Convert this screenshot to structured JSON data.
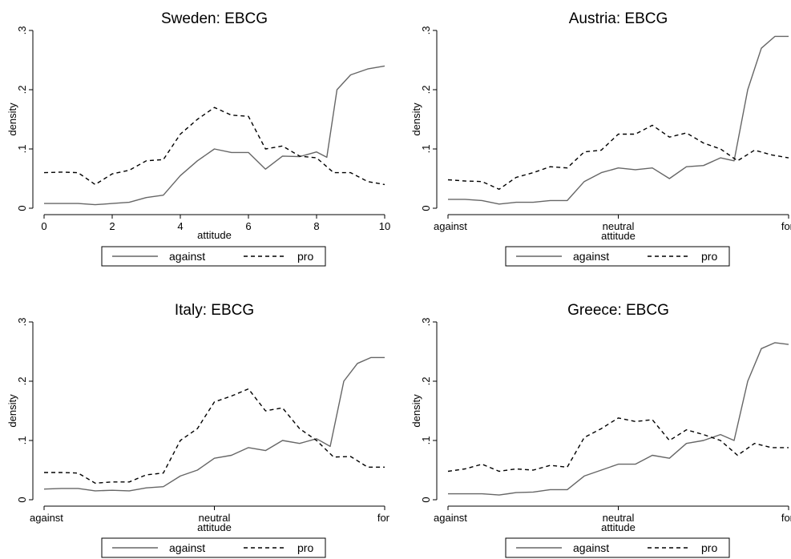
{
  "chart_data": [
    {
      "type": "line",
      "title": "Sweden: EBCG",
      "xlabel": "attitude",
      "ylabel": "density",
      "xlim": [
        0,
        10
      ],
      "ylim": [
        0,
        0.3
      ],
      "xticks": [
        0,
        2,
        4,
        6,
        8,
        10
      ],
      "xtick_labels": [
        "0",
        "2",
        "4",
        "6",
        "8",
        "10"
      ],
      "yticks": [
        0,
        0.1,
        0.2,
        0.3
      ],
      "ytick_labels": [
        "0",
        ".1",
        ".2",
        ".3"
      ],
      "legend": [
        "against",
        "pro"
      ],
      "series": [
        {
          "name": "against",
          "style": "solid",
          "color": "#666666",
          "x": [
            0,
            0.5,
            1,
            1.5,
            2,
            2.5,
            3,
            3.5,
            4,
            4.5,
            5,
            5.5,
            6,
            6.5,
            7,
            7.5,
            8,
            8.3,
            8.6,
            9,
            9.5,
            10
          ],
          "y": [
            0.008,
            0.008,
            0.008,
            0.006,
            0.008,
            0.01,
            0.018,
            0.022,
            0.055,
            0.08,
            0.1,
            0.094,
            0.094,
            0.066,
            0.088,
            0.087,
            0.095,
            0.086,
            0.2,
            0.225,
            0.235,
            0.24
          ]
        },
        {
          "name": "pro",
          "style": "dashed",
          "color": "#000000",
          "x": [
            0,
            0.5,
            1,
            1.5,
            2,
            2.5,
            3,
            3.5,
            4,
            4.5,
            5,
            5.5,
            6,
            6.5,
            7,
            7.5,
            8,
            8.5,
            9,
            9.5,
            10
          ],
          "y": [
            0.06,
            0.061,
            0.06,
            0.04,
            0.058,
            0.064,
            0.08,
            0.082,
            0.125,
            0.15,
            0.17,
            0.157,
            0.155,
            0.1,
            0.105,
            0.088,
            0.085,
            0.06,
            0.06,
            0.045,
            0.04
          ]
        }
      ]
    },
    {
      "type": "line",
      "title": "Austria: EBCG",
      "xlabel": "attitude",
      "ylabel": "density",
      "xlim": [
        0,
        10
      ],
      "ylim": [
        0,
        0.3
      ],
      "xticks": [
        0,
        5,
        10
      ],
      "xtick_labels": [
        "against",
        "neutral",
        "for"
      ],
      "yticks": [
        0,
        0.1,
        0.2,
        0.3
      ],
      "ytick_labels": [
        "0",
        ".1",
        ".2",
        ".3"
      ],
      "legend": [
        "against",
        "pro"
      ],
      "series": [
        {
          "name": "against",
          "style": "solid",
          "color": "#666666",
          "x": [
            0,
            0.5,
            1,
            1.5,
            2,
            2.5,
            3,
            3.5,
            4,
            4.5,
            5,
            5.5,
            6,
            6.5,
            7,
            7.5,
            8,
            8.4,
            8.8,
            9.2,
            9.6,
            10
          ],
          "y": [
            0.015,
            0.015,
            0.013,
            0.007,
            0.01,
            0.01,
            0.013,
            0.013,
            0.045,
            0.06,
            0.068,
            0.065,
            0.068,
            0.05,
            0.07,
            0.072,
            0.085,
            0.08,
            0.2,
            0.27,
            0.29,
            0.29
          ]
        },
        {
          "name": "pro",
          "style": "dashed",
          "color": "#000000",
          "x": [
            0,
            0.5,
            1,
            1.5,
            2,
            2.5,
            3,
            3.5,
            4,
            4.5,
            5,
            5.5,
            6,
            6.5,
            7,
            7.5,
            8,
            8.5,
            9,
            9.5,
            10
          ],
          "y": [
            0.048,
            0.046,
            0.045,
            0.032,
            0.052,
            0.06,
            0.07,
            0.068,
            0.095,
            0.098,
            0.125,
            0.125,
            0.14,
            0.12,
            0.127,
            0.11,
            0.1,
            0.08,
            0.098,
            0.09,
            0.085
          ]
        }
      ]
    },
    {
      "type": "line",
      "title": "Italy: EBCG",
      "xlabel": "attitude",
      "ylabel": "density",
      "xlim": [
        0,
        10
      ],
      "ylim": [
        0,
        0.3
      ],
      "xticks": [
        0,
        5,
        10
      ],
      "xtick_labels": [
        "against",
        "neutral",
        "for"
      ],
      "yticks": [
        0,
        0.1,
        0.2,
        0.3
      ],
      "ytick_labels": [
        "0",
        ".1",
        ".2",
        ".3"
      ],
      "legend": [
        "against",
        "pro"
      ],
      "series": [
        {
          "name": "against",
          "style": "solid",
          "color": "#666666",
          "x": [
            0,
            0.5,
            1,
            1.5,
            2,
            2.5,
            3,
            3.5,
            4,
            4.5,
            5,
            5.5,
            6,
            6.5,
            7,
            7.5,
            8,
            8.4,
            8.8,
            9.2,
            9.6,
            10
          ],
          "y": [
            0.018,
            0.019,
            0.019,
            0.015,
            0.016,
            0.015,
            0.02,
            0.022,
            0.04,
            0.05,
            0.07,
            0.075,
            0.088,
            0.083,
            0.1,
            0.095,
            0.103,
            0.09,
            0.2,
            0.23,
            0.24,
            0.24
          ]
        },
        {
          "name": "pro",
          "style": "dashed",
          "color": "#000000",
          "x": [
            0,
            0.5,
            1,
            1.5,
            2,
            2.5,
            3,
            3.5,
            4,
            4.5,
            5,
            5.5,
            6,
            6.5,
            7,
            7.5,
            8,
            8.5,
            9,
            9.5,
            10
          ],
          "y": [
            0.046,
            0.046,
            0.045,
            0.028,
            0.03,
            0.03,
            0.042,
            0.045,
            0.1,
            0.12,
            0.165,
            0.175,
            0.187,
            0.15,
            0.155,
            0.12,
            0.1,
            0.072,
            0.073,
            0.055,
            0.055
          ]
        }
      ]
    },
    {
      "type": "line",
      "title": "Greece: EBCG",
      "xlabel": "attitude",
      "ylabel": "density",
      "xlim": [
        0,
        10
      ],
      "ylim": [
        0,
        0.3
      ],
      "xticks": [
        0,
        5,
        10
      ],
      "xtick_labels": [
        "against",
        "neutral",
        "for"
      ],
      "yticks": [
        0,
        0.1,
        0.2,
        0.3
      ],
      "ytick_labels": [
        "0",
        ".1",
        ".2",
        ".3"
      ],
      "legend": [
        "against",
        "pro"
      ],
      "series": [
        {
          "name": "against",
          "style": "solid",
          "color": "#666666",
          "x": [
            0,
            0.5,
            1,
            1.5,
            2,
            2.5,
            3,
            3.5,
            4,
            4.5,
            5,
            5.5,
            6,
            6.5,
            7,
            7.5,
            8,
            8.4,
            8.8,
            9.2,
            9.6,
            10
          ],
          "y": [
            0.01,
            0.01,
            0.01,
            0.008,
            0.012,
            0.013,
            0.017,
            0.017,
            0.04,
            0.05,
            0.06,
            0.06,
            0.075,
            0.07,
            0.095,
            0.1,
            0.11,
            0.1,
            0.2,
            0.255,
            0.265,
            0.262
          ]
        },
        {
          "name": "pro",
          "style": "dashed",
          "color": "#000000",
          "x": [
            0,
            0.5,
            1,
            1.5,
            2,
            2.5,
            3,
            3.5,
            4,
            4.5,
            5,
            5.5,
            6,
            6.5,
            7,
            7.5,
            8,
            8.5,
            9,
            9.5,
            10
          ],
          "y": [
            0.048,
            0.052,
            0.06,
            0.048,
            0.052,
            0.05,
            0.058,
            0.055,
            0.105,
            0.12,
            0.138,
            0.132,
            0.135,
            0.1,
            0.118,
            0.11,
            0.1,
            0.075,
            0.095,
            0.088,
            0.088
          ]
        }
      ]
    }
  ]
}
